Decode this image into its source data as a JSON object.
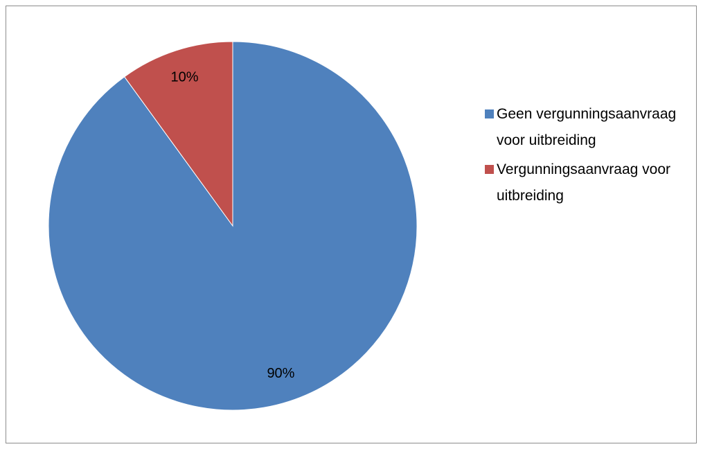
{
  "chart_data": {
    "type": "pie",
    "categories": [
      "Geen vergunningsaanvraag voor uitbreiding",
      "Vergunningsaanvraag voor uitbreiding"
    ],
    "values": [
      90,
      10
    ],
    "value_labels": [
      "90%",
      "10%"
    ],
    "colors": [
      "#4f81bd",
      "#c0504d"
    ],
    "legend": "right"
  }
}
